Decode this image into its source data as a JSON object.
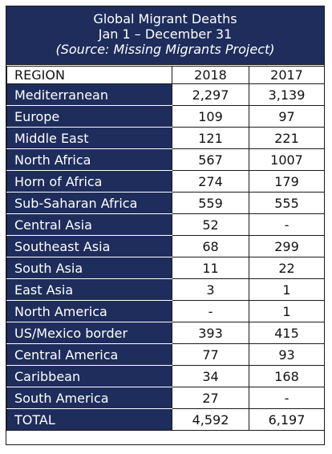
{
  "chart_data": {
    "type": "table",
    "title": "Global Migrant Deaths",
    "period": "Jan 1 – December 31",
    "source": "(Source: Missing Migrants Project)",
    "columns": [
      "REGION",
      "2018",
      "2017"
    ],
    "rows": [
      [
        "Mediterranean",
        "2,297",
        "3,139"
      ],
      [
        "Europe",
        "109",
        "97"
      ],
      [
        "Middle East",
        "121",
        "221"
      ],
      [
        "North Africa",
        "567",
        "1007"
      ],
      [
        "Horn of Africa",
        "274",
        "179"
      ],
      [
        "Sub-Saharan Africa",
        "559",
        "555"
      ],
      [
        "Central Asia",
        "52",
        "-"
      ],
      [
        "Southeast Asia",
        "68",
        "299"
      ],
      [
        "South Asia",
        "11",
        "22"
      ],
      [
        "East Asia",
        "3",
        "1"
      ],
      [
        "North America",
        "-",
        "1"
      ],
      [
        "US/Mexico border",
        "393",
        "415"
      ],
      [
        "Central America",
        "77",
        "93"
      ],
      [
        "Caribbean",
        "34",
        "168"
      ],
      [
        "South America",
        "27",
        "-"
      ],
      [
        "TOTAL",
        "4,592",
        "6,197"
      ]
    ]
  },
  "colors": {
    "header_background": "#1f2d5c",
    "region_cell_background": "#1f2d5c",
    "region_text": "#ffffff",
    "value_background": "#ffffff"
  }
}
